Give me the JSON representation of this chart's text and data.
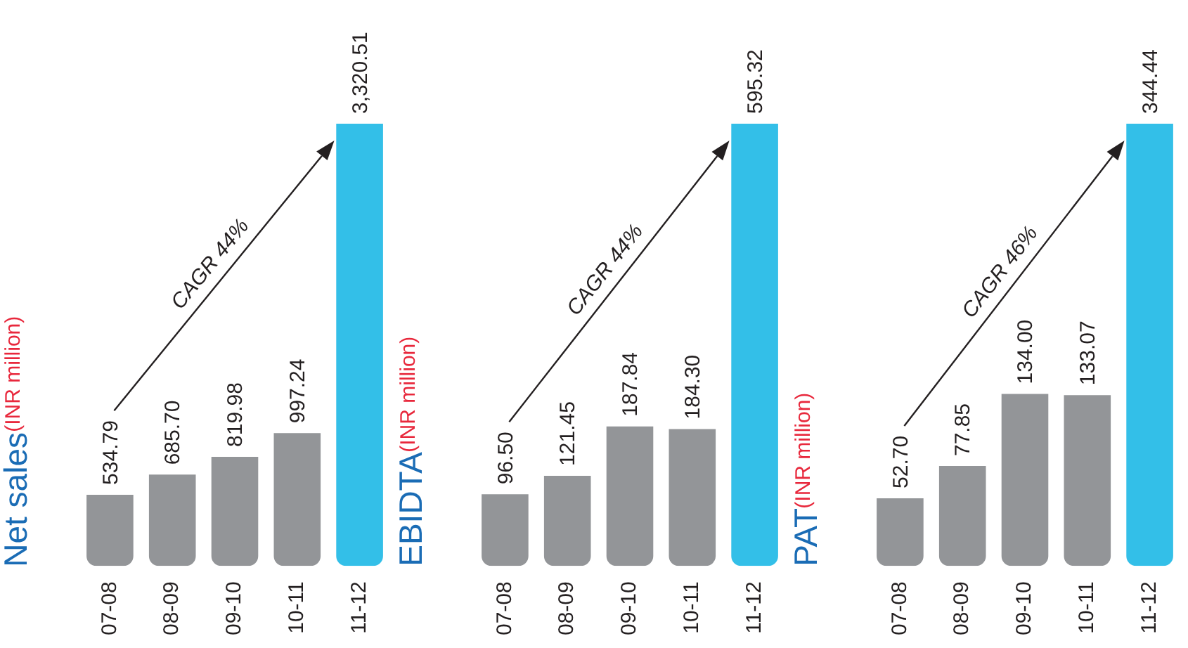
{
  "chart_data": [
    {
      "type": "bar",
      "title": "Net sales",
      "subtitle": "(INR million)",
      "categories": [
        "07-08",
        "08-09",
        "09-10",
        "10-11",
        "11-12"
      ],
      "values": [
        534.79,
        685.7,
        819.98,
        997.24,
        3320.51
      ],
      "colors": [
        "#939598",
        "#939598",
        "#939598",
        "#939598",
        "#33bfe8"
      ],
      "value_labels": [
        "534.79",
        "685.70",
        "819.98",
        "997.24",
        "3,320.51"
      ],
      "annotations": [
        "CAGR 44%"
      ]
    },
    {
      "type": "bar",
      "title": "EBIDTA",
      "subtitle": "(INR million)",
      "categories": [
        "07-08",
        "08-09",
        "09-10",
        "10-11",
        "11-12"
      ],
      "values": [
        96.5,
        121.45,
        187.84,
        184.3,
        595.32
      ],
      "colors": [
        "#939598",
        "#939598",
        "#939598",
        "#939598",
        "#33bfe8"
      ],
      "value_labels": [
        "96.50",
        "121.45",
        "187.84",
        "184.30",
        "595.32"
      ],
      "annotations": [
        "CAGR 44%"
      ]
    },
    {
      "type": "bar",
      "title": "PAT",
      "subtitle": "(INR million)",
      "categories": [
        "07-08",
        "08-09",
        "09-10",
        "10-11",
        "11-12"
      ],
      "values": [
        52.7,
        77.85,
        134.0,
        133.07,
        344.44
      ],
      "colors": [
        "#939598",
        "#939598",
        "#939598",
        "#939598",
        "#33bfe8"
      ],
      "value_labels": [
        "52.70",
        "77.85",
        "134.00",
        "133.07",
        "344.44"
      ],
      "annotations": [
        "CAGR 46%"
      ]
    }
  ]
}
